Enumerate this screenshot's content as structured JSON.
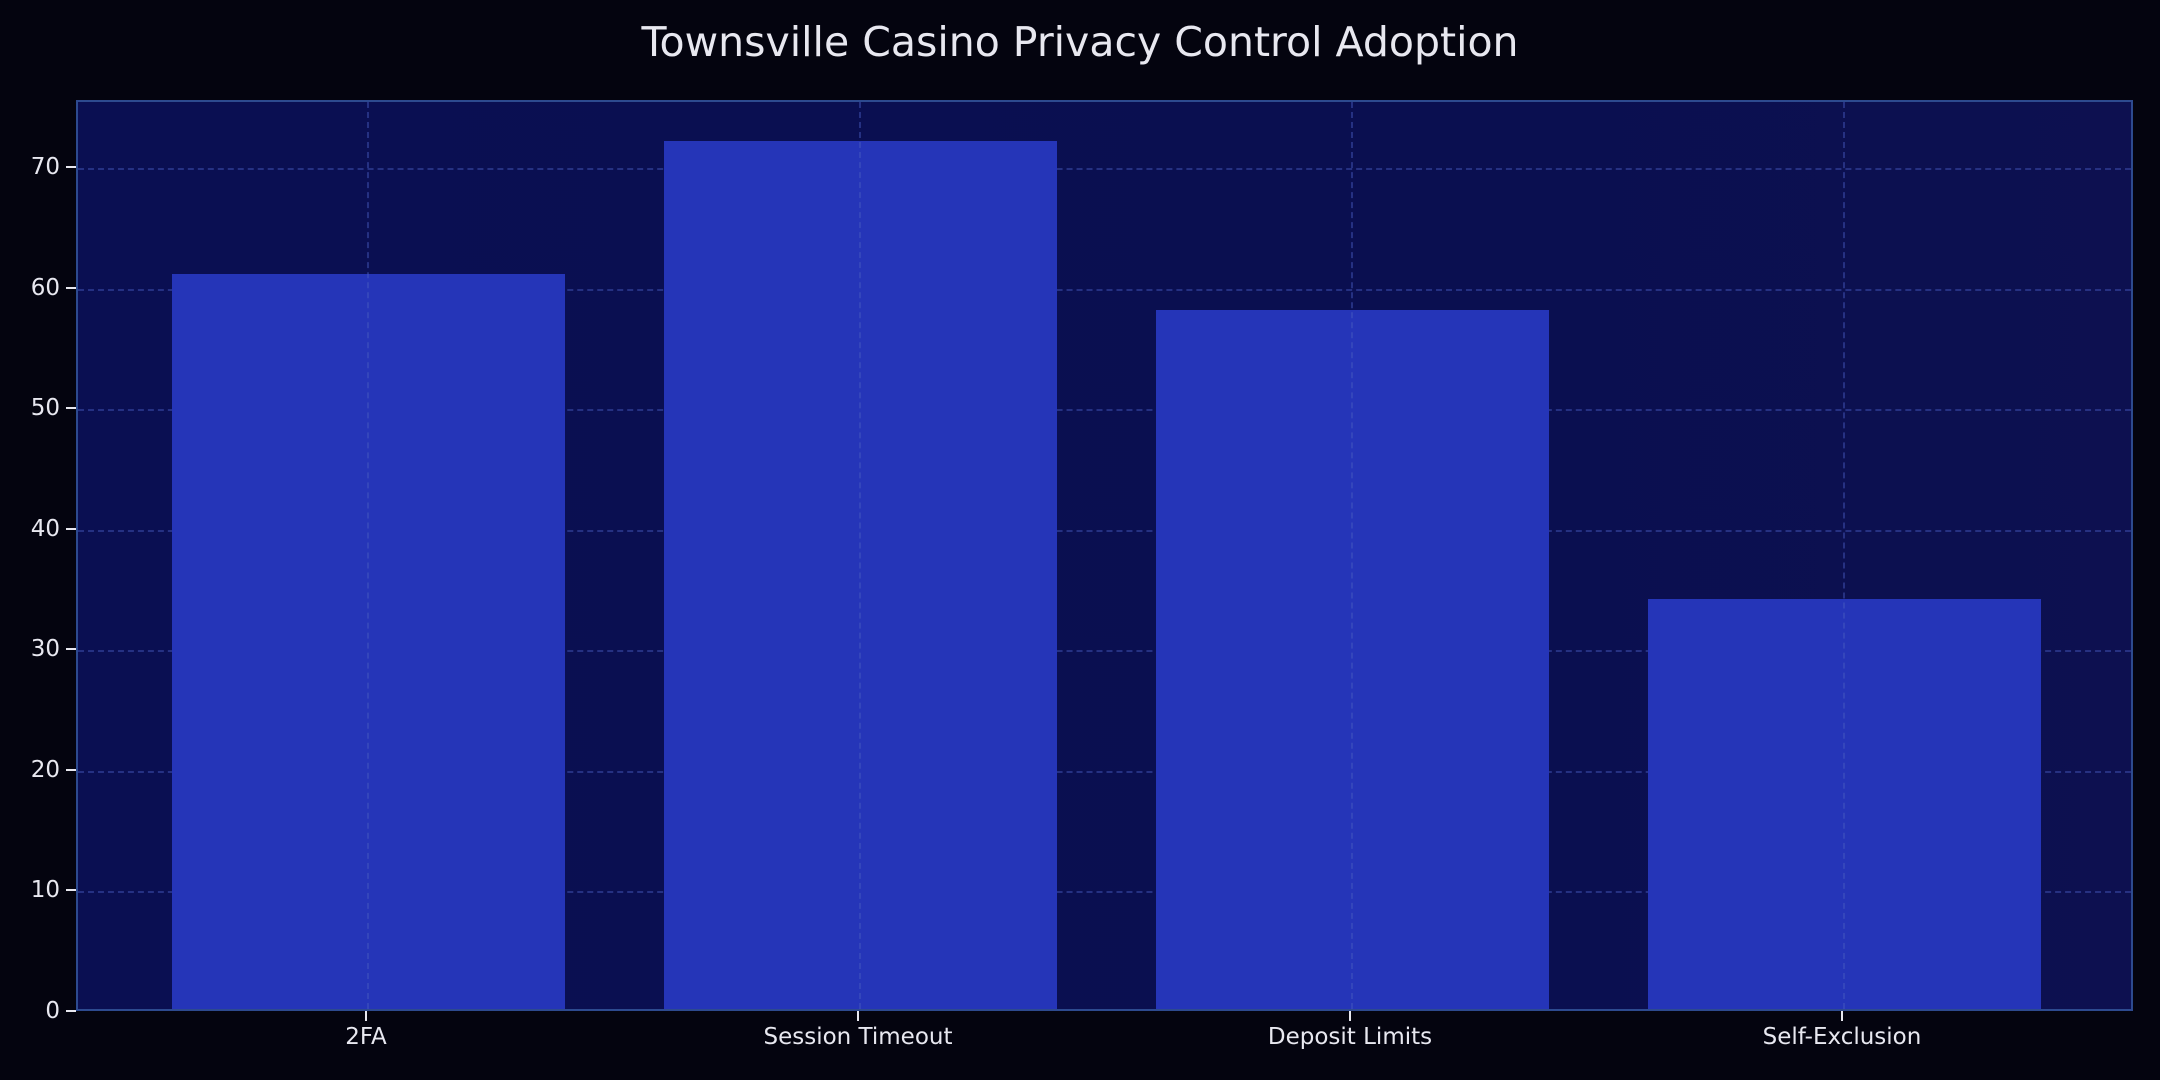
{
  "chart_data": {
    "type": "bar",
    "title": "Townsville Casino Privacy Control Adoption",
    "categories": [
      "2FA",
      "Session Timeout",
      "Deposit Limits",
      "Self-Exclusion"
    ],
    "values": [
      61,
      72,
      58,
      34
    ],
    "xlabel": "",
    "ylabel": "",
    "ylim": [
      0,
      75.6
    ],
    "yticks": [
      0,
      10,
      20,
      30,
      40,
      50,
      60,
      70
    ],
    "grid": true,
    "legend": null,
    "colors": {
      "background": "#04040f",
      "plot_background": "#0a0f52",
      "bar": "#2535b8",
      "grid": "#3a4aa8",
      "text": "#e8e8f0",
      "spine": "#2d4a8f"
    }
  }
}
